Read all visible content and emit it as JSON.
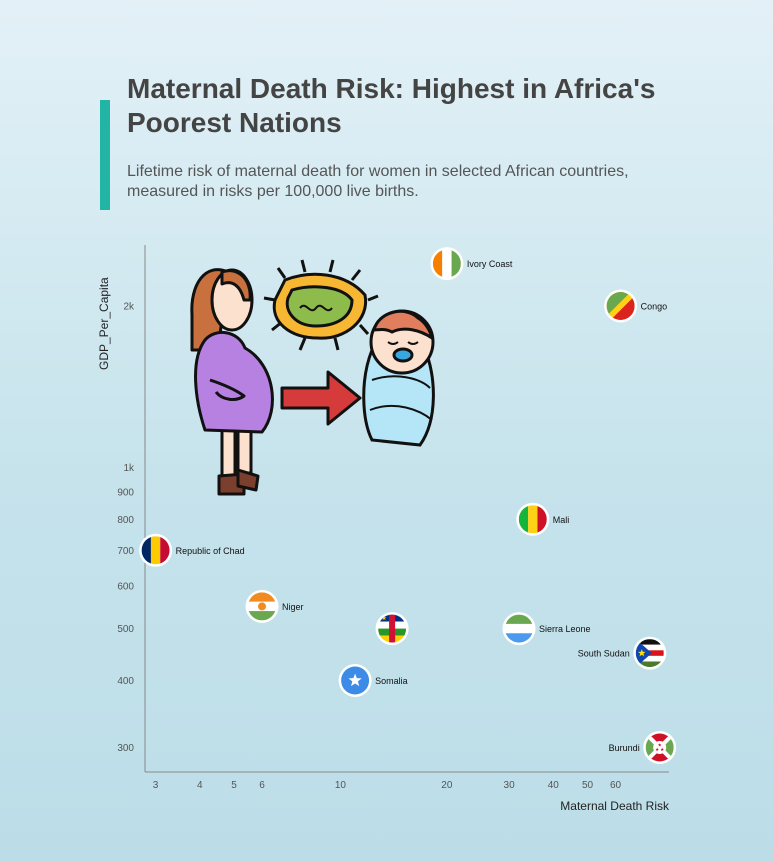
{
  "header": {
    "title": "Maternal Death Risk: Highest in Africa's Poorest Nations",
    "subtitle": "Lifetime risk of maternal death for women in selected African countries, measured in risks per 100,000 live births.",
    "accent_color": "#22b5a5"
  },
  "chart_data": {
    "type": "scatter",
    "xlabel": "Maternal Death Risk",
    "ylabel": "GDP_Per_Capita",
    "x_scale": "log",
    "y_scale": "log",
    "xlim": [
      2.8,
      85
    ],
    "ylim": [
      270,
      2600
    ],
    "x_ticks": [
      3,
      4,
      5,
      6,
      10,
      20,
      30,
      40,
      50,
      60
    ],
    "x_tick_labels": [
      "3",
      "4",
      "5",
      "6",
      "10",
      "20",
      "30",
      "40",
      "50",
      "60"
    ],
    "y_ticks": [
      300,
      400,
      500,
      600,
      700,
      800,
      900,
      1000,
      2000
    ],
    "y_tick_labels": [
      "300",
      "400",
      "500",
      "600",
      "700",
      "800",
      "900",
      "1k",
      "2k"
    ],
    "grid": false,
    "points": [
      {
        "label": "Ivory Coast",
        "x": 20,
        "y": 2400,
        "flag": "ivory-coast",
        "label_side": "right"
      },
      {
        "label": "Congo",
        "x": 62,
        "y": 2000,
        "flag": "congo",
        "label_side": "right"
      },
      {
        "label": "Mali",
        "x": 35,
        "y": 800,
        "flag": "mali",
        "label_side": "right"
      },
      {
        "label": "Republic of Chad",
        "x": 3,
        "y": 700,
        "flag": "chad",
        "label_side": "right"
      },
      {
        "label": "Niger",
        "x": 6,
        "y": 550,
        "flag": "niger",
        "label_side": "right"
      },
      {
        "label": "",
        "x": 14,
        "y": 500,
        "flag": "central-african-republic",
        "label_side": "right"
      },
      {
        "label": "Sierra Leone",
        "x": 32,
        "y": 500,
        "flag": "sierra-leone",
        "label_side": "right"
      },
      {
        "label": "South Sudan",
        "x": 75,
        "y": 450,
        "flag": "south-sudan",
        "label_side": "left"
      },
      {
        "label": "Somalia",
        "x": 11,
        "y": 400,
        "flag": "somalia",
        "label_side": "right"
      },
      {
        "label": "Burundi",
        "x": 80,
        "y": 300,
        "flag": "burundi",
        "label_side": "left"
      }
    ]
  },
  "illustration": {
    "icons": [
      "pregnant-woman-icon",
      "bacteria-icon",
      "arrow-right-icon",
      "newborn-baby-icon"
    ]
  }
}
